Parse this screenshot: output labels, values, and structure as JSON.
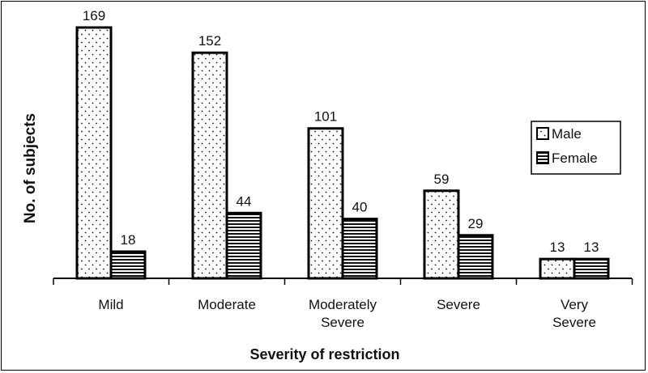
{
  "chart_data": {
    "type": "bar",
    "title": "",
    "xlabel": "Severity of restriction",
    "ylabel": "No. of subjects",
    "categories": [
      [
        "Mild"
      ],
      [
        "Moderate"
      ],
      [
        "Moderately",
        "Severe"
      ],
      [
        "Severe"
      ],
      [
        "Very",
        "Severe"
      ]
    ],
    "series": [
      {
        "name": "Male",
        "values": [
          169,
          152,
          101,
          59,
          13
        ],
        "pattern": "dots"
      },
      {
        "name": "Female",
        "values": [
          18,
          44,
          40,
          29,
          13
        ],
        "pattern": "horizontal-lines"
      }
    ],
    "ylim": [
      0,
      169
    ],
    "grid": false,
    "legend": "right",
    "data_labels": true
  }
}
